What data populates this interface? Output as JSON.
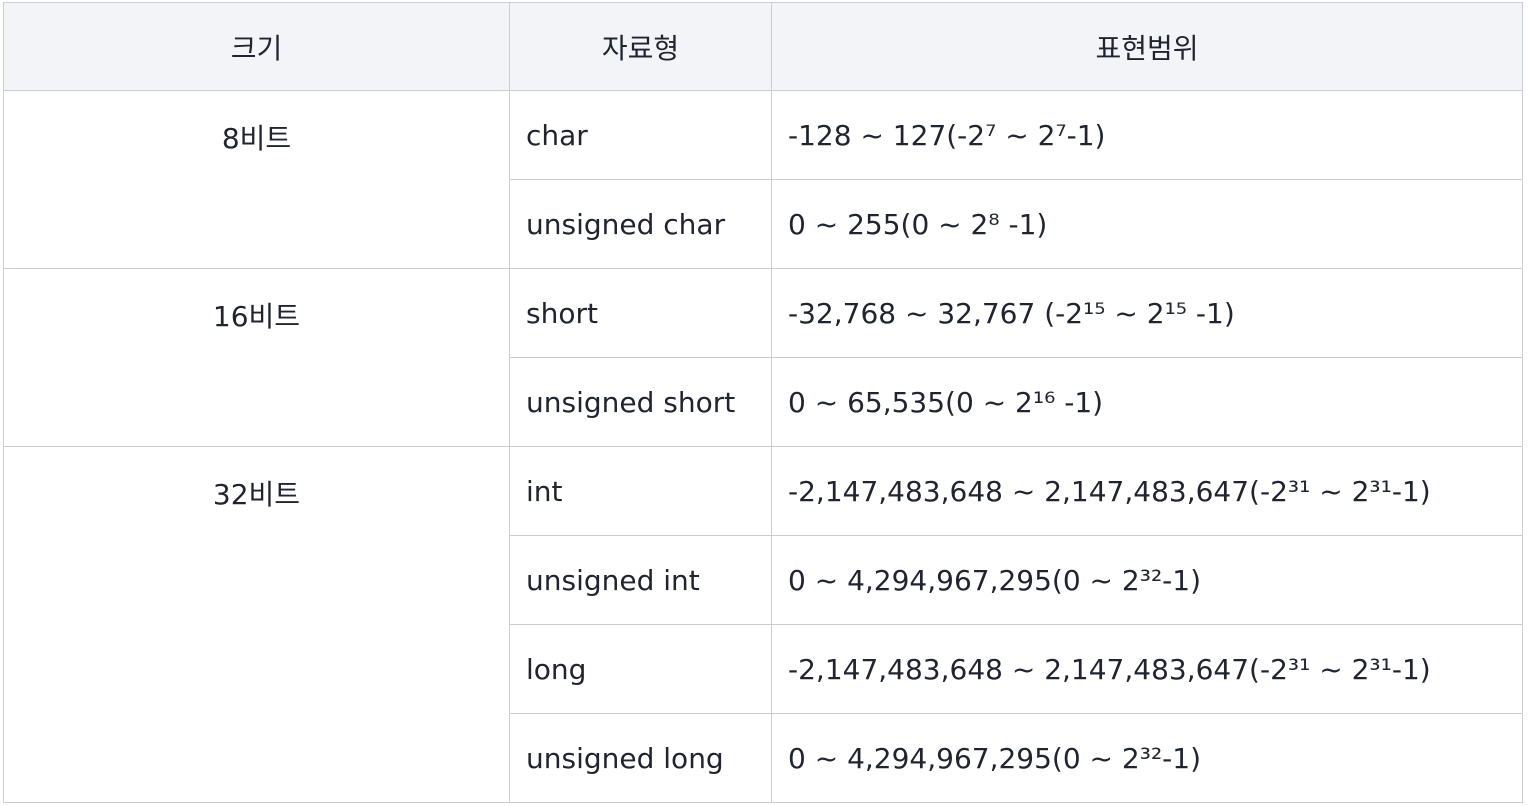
{
  "headers": [
    "크기",
    "자료형",
    "표현범위"
  ],
  "groups": [
    {
      "size": "8비트",
      "rows": [
        {
          "type": "char",
          "range": "-128 ~ 127(-2⁷ ~ 2⁷-1)"
        },
        {
          "type": "unsigned char",
          "range": "0 ~ 255(0 ~ 2⁸ -1)"
        }
      ]
    },
    {
      "size": "16비트",
      "rows": [
        {
          "type": "short",
          "range": "-32,768 ~ 32,767 (-2¹⁵ ~ 2¹⁵ -1)"
        },
        {
          "type": "unsigned short",
          "range": "0 ~ 65,535(0 ~ 2¹⁶ -1)"
        }
      ]
    },
    {
      "size": "32비트",
      "rows": [
        {
          "type": "int",
          "range": "-2,147,483,648 ~ 2,147,483,647(-2³¹ ~ 2³¹-1)"
        },
        {
          "type": "unsigned int",
          "range": "0 ~ 4,294,967,295(0 ~ 2³²-1)"
        },
        {
          "type": "long",
          "range": "-2,147,483,648 ~ 2,147,483,647(-2³¹ ~ 2³¹-1)"
        },
        {
          "type": "unsigned long",
          "range": "0 ~ 4,294,967,295(0 ~ 2³²-1)"
        }
      ]
    }
  ]
}
